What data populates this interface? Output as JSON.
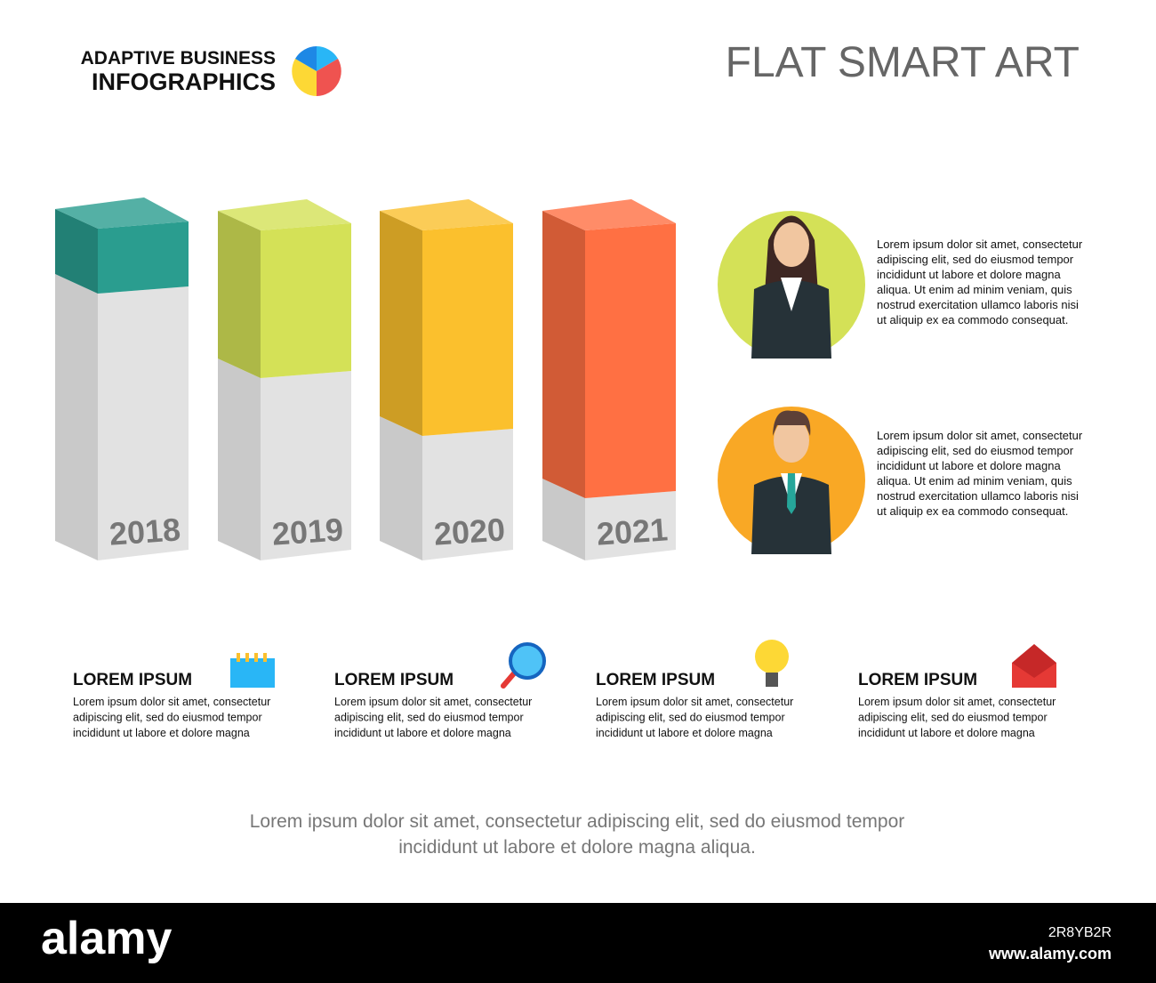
{
  "header": {
    "brand_line1": "ADAPTIVE BUSINESS",
    "brand_line2": "INFOGRAPHICS",
    "title": "FLAT SMART ART"
  },
  "bars": [
    {
      "label": "2018",
      "color": "#2a9d8f"
    },
    {
      "label": "2019",
      "color": "#d4e157"
    },
    {
      "label": "2020",
      "color": "#fbc02d"
    },
    {
      "label": "2021",
      "color": "#ff7043"
    }
  ],
  "people": [
    {
      "color": "#d4e157",
      "lines": [
        "Lorem ipsum dolor sit amet, consectetur",
        "adipiscing elit, sed do eiusmod tempor",
        "incididunt ut labore et dolore magna",
        "aliqua. Ut enim ad minim veniam, quis",
        "nostrud exercitation ullamco laboris nisi",
        "ut aliquip ex ea commodo consequat."
      ]
    },
    {
      "color": "#f9a825",
      "lines": [
        "Lorem ipsum dolor sit amet, consectetur",
        "adipiscing elit, sed do eiusmod tempor",
        "incididunt ut labore et dolore magna",
        "aliqua. Ut enim ad minim veniam, quis",
        "nostrud exercitation ullamco laboris nisi",
        "ut aliquip ex ea commodo consequat."
      ]
    }
  ],
  "items": [
    {
      "title": "LOREM IPSUM",
      "lines": [
        "Lorem ipsum dolor sit amet, consectetur",
        "adipiscing elit, sed do eiusmod tempor",
        "incididunt ut labore et dolore magna"
      ]
    },
    {
      "title": "LOREM IPSUM",
      "lines": [
        "Lorem ipsum dolor sit amet, consectetur",
        "adipiscing elit, sed do eiusmod tempor",
        "incididunt ut labore et dolore magna"
      ]
    },
    {
      "title": "LOREM IPSUM",
      "lines": [
        "Lorem ipsum dolor sit amet, consectetur",
        "adipiscing elit, sed do eiusmod tempor",
        "incididunt ut labore et dolore magna"
      ]
    },
    {
      "title": "LOREM IPSUM",
      "lines": [
        "Lorem ipsum dolor sit amet, consectetur",
        "adipiscing elit, sed do eiusmod tempor",
        "incididunt ut labore et dolore magna"
      ]
    }
  ],
  "footer": {
    "lines": [
      "Lorem ipsum dolor sit amet, consectetur adipiscing elit, sed do eiusmod tempor",
      "incididunt ut labore et dolore magna aliqua."
    ]
  },
  "watermark": {
    "brand": "alamy",
    "site": "www.alamy.com",
    "id": "2R8YB2R"
  }
}
